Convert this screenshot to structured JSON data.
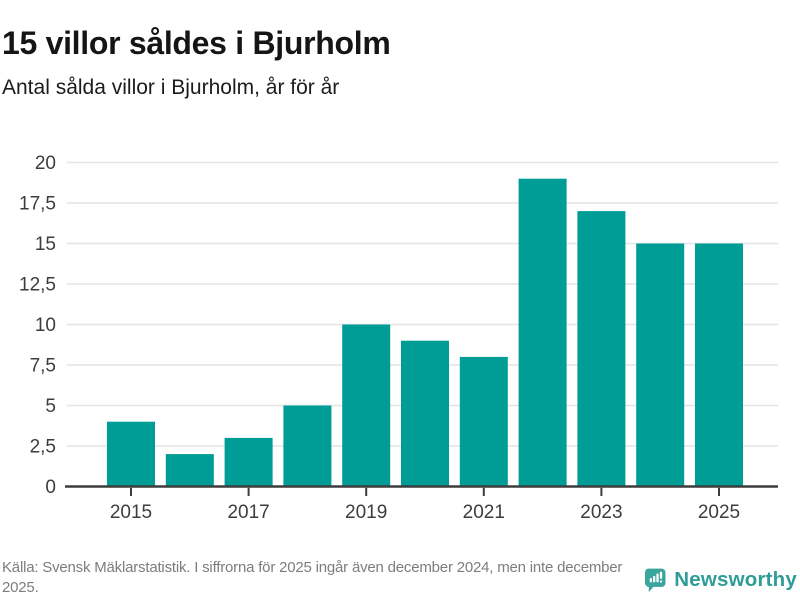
{
  "header": {
    "title": "15 villor såldes i Bjurholm",
    "subtitle": "Antal sålda villor i Bjurholm, år för år"
  },
  "chart_data": {
    "type": "bar",
    "title": "15 villor såldes i Bjurholm",
    "subtitle": "Antal sålda villor i Bjurholm, år för år",
    "categories": [
      "2015",
      "2016",
      "2017",
      "2018",
      "2019",
      "2020",
      "2021",
      "2022",
      "2023",
      "2024",
      "2025"
    ],
    "values": [
      4,
      2,
      3,
      5,
      10,
      9,
      8,
      19,
      17,
      15,
      15
    ],
    "xlabel": "",
    "ylabel": "",
    "ylim": [
      0,
      20
    ],
    "ytick_step": 2.5,
    "ytick_labels": [
      "0",
      "2,5",
      "5",
      "7,5",
      "10",
      "12,5",
      "15",
      "17,5",
      "20"
    ],
    "xtick_shown": [
      "2015",
      "2017",
      "2019",
      "2021",
      "2023",
      "2025"
    ],
    "grid": true,
    "legend": false,
    "decimal_separator": ",",
    "bar_color": "#009d96"
  },
  "footer": {
    "source": "Källa: Svensk Mäklarstatistik. I siffrorna för 2025 ingår även december 2024, men inte december 2025."
  },
  "branding": {
    "name": "Newsworthy",
    "icon": "speech-bubble-bar-chart-icon",
    "icon_color": "#3aa59d",
    "text_color": "#2f9c96"
  },
  "colors": {
    "background": "#ffffff",
    "bar": "#009d96",
    "axis": "#3d3d3d",
    "grid": "#e4e4e4",
    "title_text": "#151515",
    "subtitle_text": "#1c1c1c",
    "footer_text": "#7d7d7d"
  }
}
